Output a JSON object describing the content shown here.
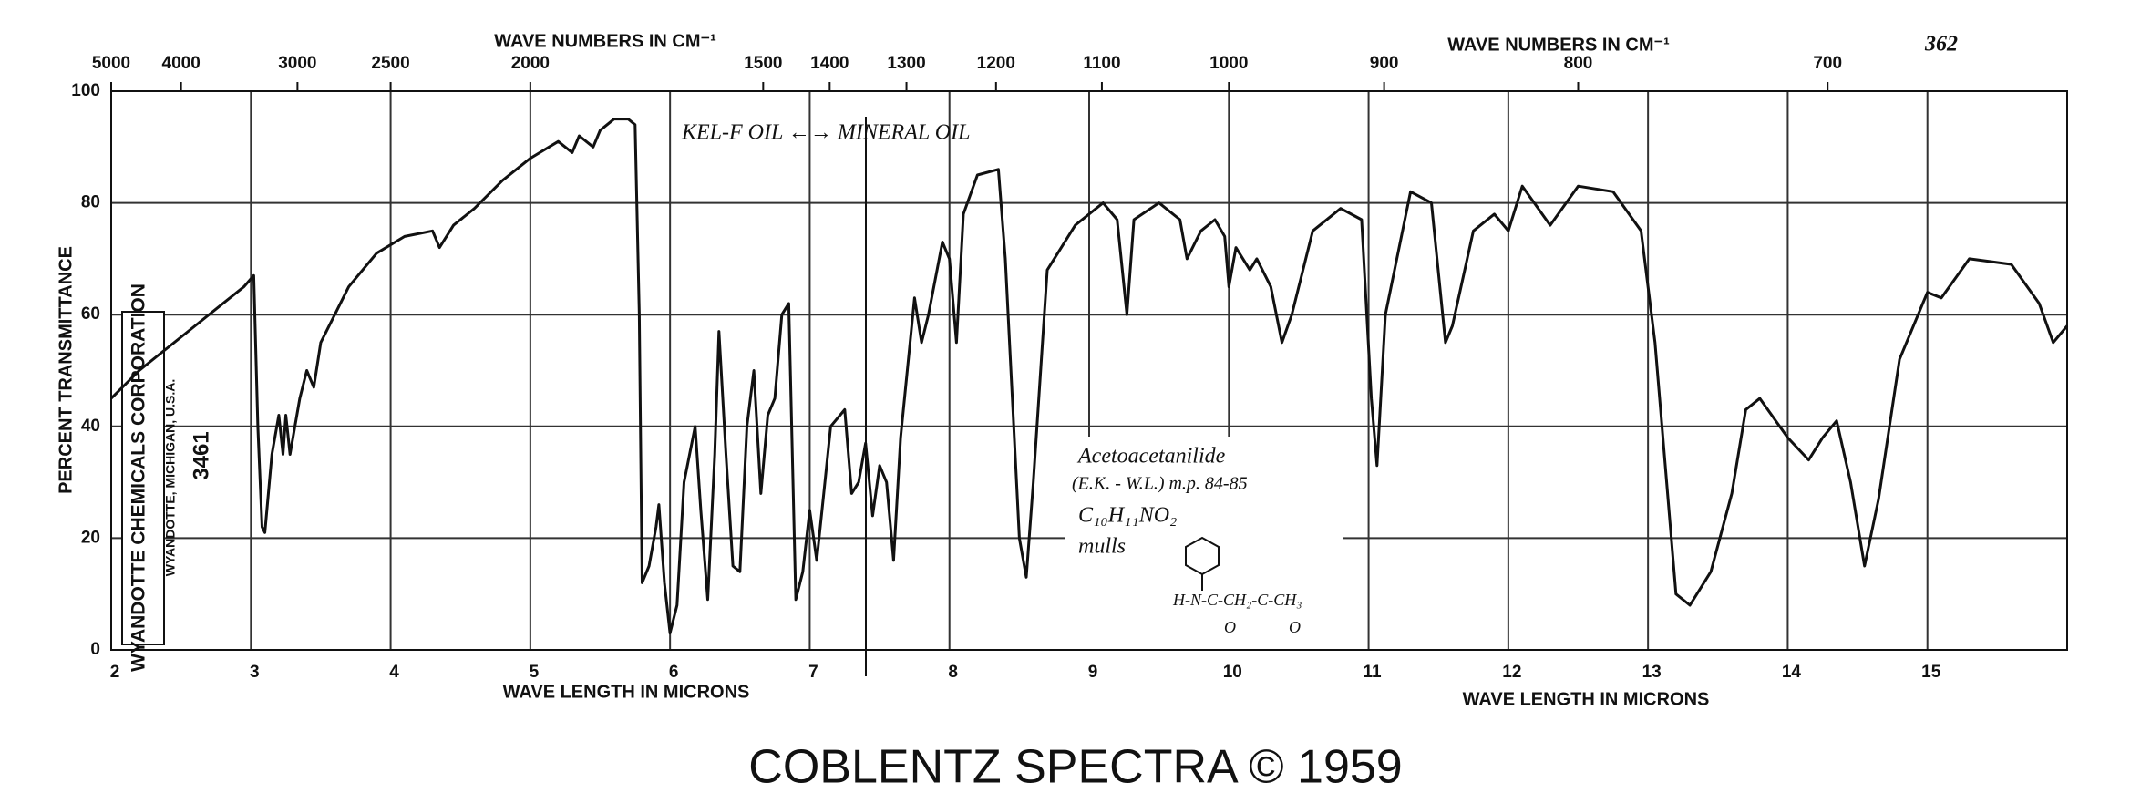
{
  "chart_data": {
    "type": "line",
    "page_number": "362",
    "footer": "COBLENTZ SPECTRA © 1959",
    "x_label": "WAVE LENGTH IN MICRONS",
    "x2_label": "WAVE NUMBERS IN CM⁻¹",
    "y_label": "PERCENT TRANSMITTANCE",
    "xlim": [
      2,
      16
    ],
    "ylim": [
      0,
      100
    ],
    "xticks": [
      2,
      3,
      4,
      5,
      6,
      7,
      8,
      9,
      10,
      11,
      12,
      13,
      14,
      15
    ],
    "x2ticks": [
      5000,
      4000,
      3000,
      2500,
      2000,
      1500,
      1400,
      1300,
      1200,
      1100,
      1000,
      900,
      800,
      700
    ],
    "yticks": [
      0,
      20,
      40,
      60,
      80,
      100
    ],
    "grid": true,
    "stamp": {
      "company": "WYANDOTTE CHEMICALS CORPORATION",
      "location": "WYANDOTTE, MICHIGAN, U.S.A.",
      "number": "3461"
    },
    "annotations": {
      "mull_note": "KEL-F OIL ←→ MINERAL OIL",
      "compound": "Acetoacetanilide",
      "source_mp": "(E.K. - W.L.) m.p. 84-85",
      "formula": "C₁₀H₁₁NO₂",
      "sample": "mulls",
      "structure": "H-N-C-CH₂-C-CH₃",
      "oxygen": "O"
    },
    "series": [
      {
        "name": "Acetoacetanilide",
        "color": "#111111",
        "x": [
          2.0,
          2.2,
          2.4,
          2.6,
          2.8,
          2.95,
          3.02,
          3.05,
          3.08,
          3.1,
          3.15,
          3.2,
          3.23,
          3.25,
          3.28,
          3.35,
          3.4,
          3.45,
          3.5,
          3.6,
          3.7,
          3.9,
          4.1,
          4.3,
          4.35,
          4.45,
          4.6,
          4.8,
          5.0,
          5.2,
          5.3,
          5.35,
          5.45,
          5.5,
          5.6,
          5.7,
          5.75,
          5.78,
          5.8,
          5.85,
          5.9,
          5.92,
          5.96,
          6.0,
          6.05,
          6.1,
          6.18,
          6.22,
          6.27,
          6.32,
          6.35,
          6.4,
          6.45,
          6.5,
          6.55,
          6.6,
          6.65,
          6.7,
          6.75,
          6.8,
          6.85,
          6.9,
          6.95,
          7.0,
          7.05,
          7.1,
          7.15,
          7.25,
          7.3,
          7.35,
          7.4,
          7.45,
          7.5,
          7.55,
          7.6,
          7.65,
          7.75,
          7.8,
          7.85,
          7.95,
          8.0,
          8.05,
          8.1,
          8.2,
          8.35,
          8.4,
          8.45,
          8.5,
          8.55,
          8.6,
          8.7,
          8.9,
          9.1,
          9.2,
          9.27,
          9.32,
          9.5,
          9.65,
          9.7,
          9.8,
          9.9,
          9.97,
          10.0,
          10.05,
          10.15,
          10.2,
          10.3,
          10.38,
          10.45,
          10.6,
          10.8,
          10.95,
          11.02,
          11.06,
          11.12,
          11.3,
          11.45,
          11.55,
          11.6,
          11.75,
          11.9,
          12.0,
          12.1,
          12.3,
          12.5,
          12.75,
          12.95,
          13.05,
          13.2,
          13.3,
          13.45,
          13.6,
          13.7,
          13.8,
          14.0,
          14.15,
          14.25,
          14.35,
          14.45,
          14.55,
          14.65,
          14.8,
          15.0,
          15.1,
          15.3,
          15.6,
          15.8,
          15.9,
          16.0
        ],
        "values": [
          45,
          50,
          54,
          58,
          62,
          65,
          67,
          40,
          22,
          21,
          35,
          42,
          35,
          42,
          35,
          45,
          50,
          47,
          55,
          60,
          65,
          71,
          74,
          75,
          72,
          76,
          79,
          84,
          88,
          91,
          89,
          92,
          90,
          93,
          95,
          95,
          94,
          60,
          12,
          15,
          22,
          26,
          12,
          3,
          8,
          30,
          40,
          25,
          9,
          35,
          57,
          35,
          15,
          14,
          40,
          50,
          28,
          42,
          45,
          60,
          62,
          9,
          14,
          25,
          16,
          28,
          40,
          43,
          28,
          30,
          37,
          24,
          33,
          30,
          16,
          38,
          63,
          55,
          60,
          73,
          70,
          55,
          78,
          85,
          86,
          70,
          45,
          20,
          13,
          30,
          68,
          76,
          80,
          77,
          60,
          77,
          80,
          77,
          70,
          75,
          77,
          74,
          65,
          72,
          68,
          70,
          65,
          55,
          60,
          75,
          79,
          77,
          45,
          33,
          60,
          82,
          80,
          55,
          58,
          75,
          78,
          75,
          83,
          76,
          83,
          82,
          75,
          55,
          10,
          8,
          14,
          28,
          43,
          45,
          38,
          34,
          38,
          41,
          30,
          15,
          27,
          52,
          64,
          63,
          70,
          69,
          62,
          55,
          58
        ]
      }
    ]
  }
}
